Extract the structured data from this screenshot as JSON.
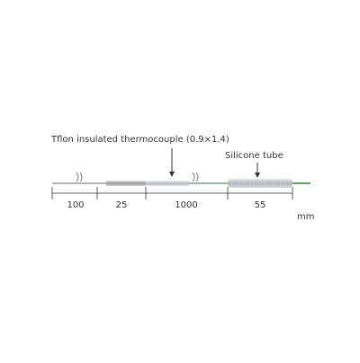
{
  "callouts": {
    "insulation": "Tflon insulated thermocouple (0.9×1.4)",
    "tube": "Silicone tube"
  },
  "dimensions": [
    "100",
    "25",
    "1000",
    "55"
  ],
  "unit": "mm"
}
